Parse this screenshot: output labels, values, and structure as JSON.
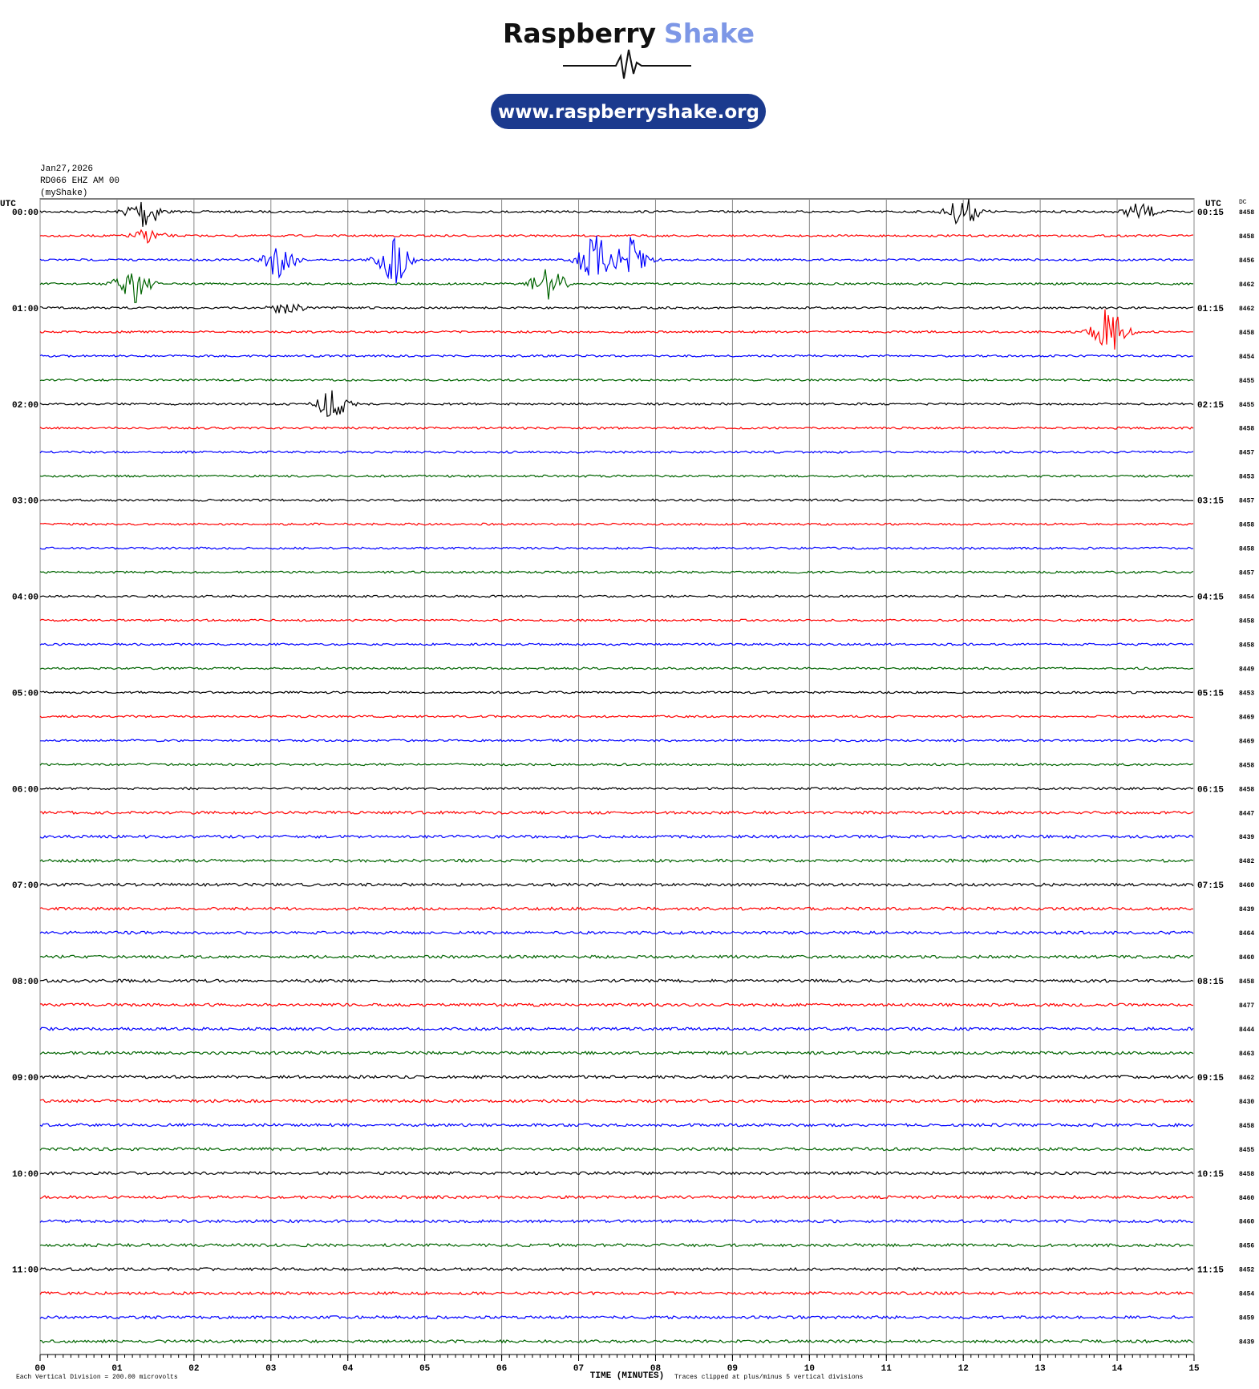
{
  "header": {
    "brand_dark": "Raspberry",
    "brand_light": "Shake",
    "url": "www.raspberryshake.org",
    "date": "Jan27,2026",
    "station": "RD066 EHZ AM 00",
    "owner": "(myShake)"
  },
  "plot": {
    "left_title": "UTC",
    "right_title": "UTC",
    "dc_title": "DC",
    "trace_colors": [
      "#000000",
      "#ff0000",
      "#0000ff",
      "#006400"
    ],
    "left_labels": [
      "00:00",
      "01:00",
      "02:00",
      "03:00",
      "04:00",
      "05:00",
      "06:00",
      "07:00",
      "08:00",
      "09:00",
      "10:00",
      "11:00"
    ],
    "right_labels": [
      "00:15",
      "01:15",
      "02:15",
      "03:15",
      "04:15",
      "05:15",
      "06:15",
      "07:15",
      "08:15",
      "09:15",
      "10:15",
      "11:15"
    ],
    "dc_values": [
      8458,
      8458,
      8456,
      8462,
      8462,
      8458,
      8454,
      8455,
      8455,
      8458,
      8457,
      8453,
      8457,
      8458,
      8458,
      8457,
      8454,
      8458,
      8458,
      8449,
      8453,
      8469,
      8469,
      8458,
      8458,
      8447,
      8439,
      8482,
      8460,
      8439,
      8464,
      8460,
      8458,
      8477,
      8444,
      8463,
      8462,
      8430,
      8458,
      8455,
      8458,
      8460,
      8460,
      8456,
      8452,
      8454,
      8459,
      8439
    ],
    "xlim": [
      0,
      15
    ],
    "xticks": [
      {
        "value": 0,
        "label": "00"
      },
      {
        "value": 1,
        "label": "01"
      },
      {
        "value": 2,
        "label": "02"
      },
      {
        "value": 3,
        "label": "03"
      },
      {
        "value": 4,
        "label": "04"
      },
      {
        "value": 5,
        "label": "05"
      },
      {
        "value": 6,
        "label": "06"
      },
      {
        "value": 7,
        "label": "07"
      },
      {
        "value": 8,
        "label": "08"
      },
      {
        "value": 9,
        "label": "09"
      },
      {
        "value": 10,
        "label": "10"
      },
      {
        "value": 11,
        "label": "11"
      },
      {
        "value": 12,
        "label": "12"
      },
      {
        "value": 13,
        "label": "13"
      },
      {
        "value": 14,
        "label": "14"
      },
      {
        "value": 15,
        "label": "15"
      }
    ],
    "x_label": "TIME (MINUTES)",
    "scale_note": "Each Vertical Division =  200.00 microvolts",
    "clip_note": "Traces clipped at plus/minus 5 vertical divisions"
  }
}
